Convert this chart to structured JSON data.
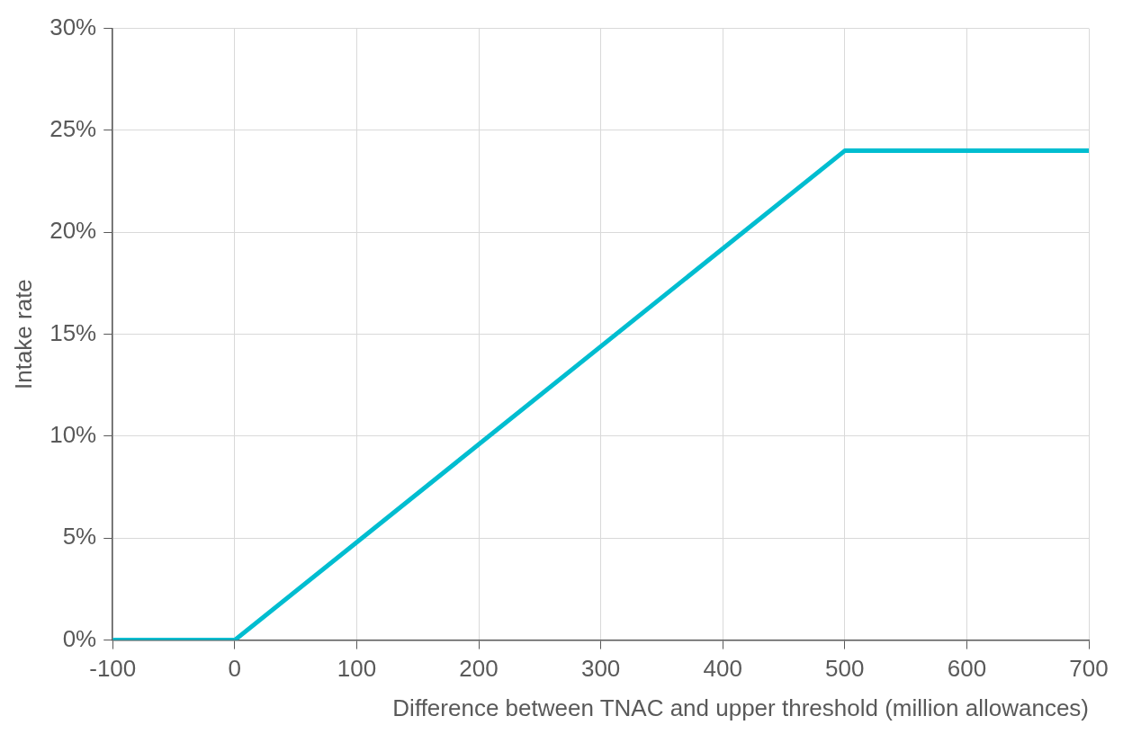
{
  "chart_data": {
    "type": "line",
    "xlabel": "Difference between TNAC and upper threshold (million allowances)",
    "ylabel": "Intake rate",
    "x": [
      -100,
      0,
      500,
      700
    ],
    "series": [
      {
        "color": "#00bdd0",
        "values": [
          0,
          0,
          24,
          24
        ]
      }
    ],
    "xlim": [
      -100,
      700
    ],
    "xticks": [
      -100,
      0,
      100,
      200,
      300,
      400,
      500,
      600,
      700
    ],
    "ylim": [
      0,
      30
    ],
    "yticks": [
      {
        "value": 0,
        "label": "0%"
      },
      {
        "value": 5,
        "label": "5%"
      },
      {
        "value": 10,
        "label": "10%"
      },
      {
        "value": 15,
        "label": "15%"
      },
      {
        "value": 20,
        "label": "20%"
      },
      {
        "value": 25,
        "label": "25%"
      },
      {
        "value": 30,
        "label": "30%"
      }
    ],
    "grid": true,
    "legend": false,
    "marker": "none",
    "line_style": "solid"
  }
}
